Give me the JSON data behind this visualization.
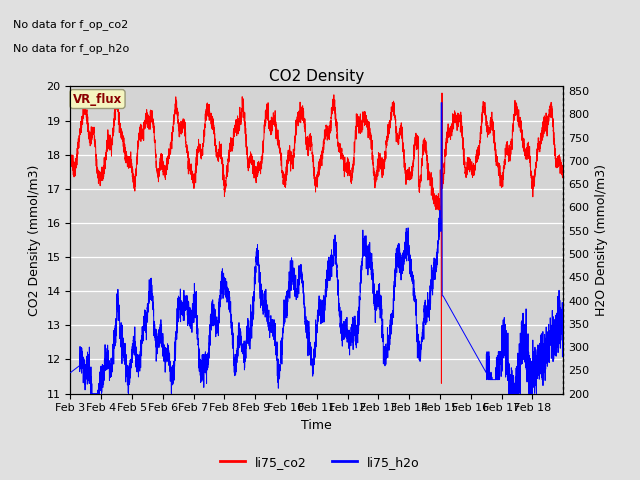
{
  "title": "CO2 Density",
  "xlabel": "Time",
  "ylabel_left": "CO2 Density (mmol/m3)",
  "ylabel_right": "H2O Density (mmol/m3)",
  "annotation_line1": "No data for f_op_co2",
  "annotation_line2": "No data for f_op_h2o",
  "vr_flux_label": "VR_flux",
  "legend_entries": [
    "li75_co2",
    "li75_h2o"
  ],
  "legend_colors": [
    "red",
    "blue"
  ],
  "ylim_left": [
    11.0,
    20.0
  ],
  "ylim_right": [
    200,
    860
  ],
  "x_tick_labels": [
    "Feb 3",
    "Feb 4",
    "Feb 5",
    "Feb 6",
    "Feb 7",
    "Feb 8",
    "Feb 9",
    "Feb 10",
    "Feb 11",
    "Feb 12",
    "Feb 13",
    "Feb 14",
    "Feb 15",
    "Feb 16",
    "Feb 17",
    "Feb 18"
  ],
  "fig_bg_color": "#e0e0e0",
  "plot_bg_color": "#d4d4d4",
  "grid_color": "#ffffff",
  "title_fontsize": 11,
  "axis_label_fontsize": 9,
  "tick_fontsize": 8
}
